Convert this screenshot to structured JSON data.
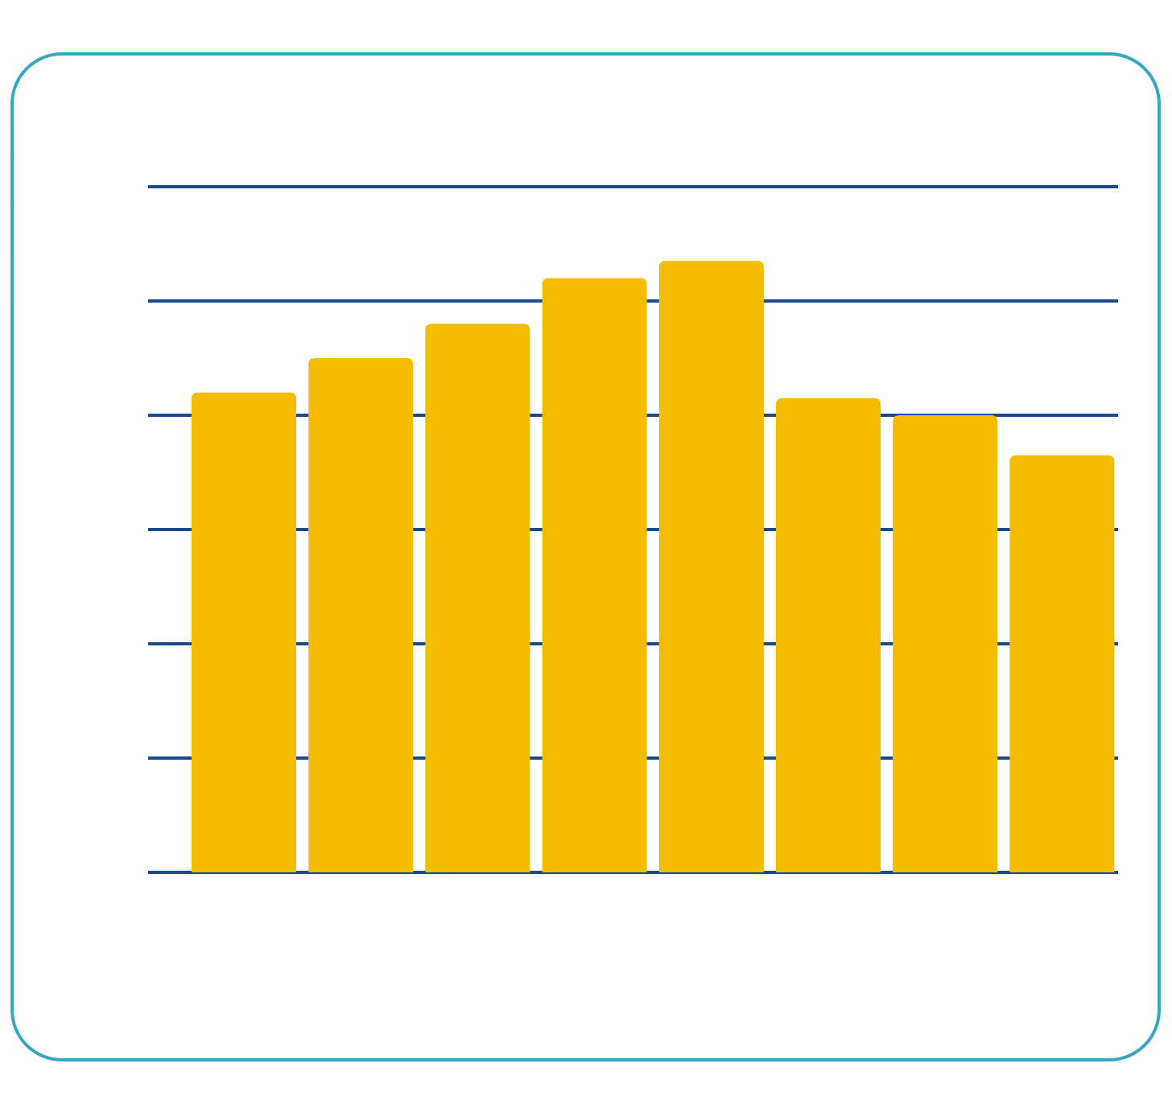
{
  "chart_data": {
    "type": "bar",
    "categories": [
      null,
      null,
      null,
      null,
      null,
      null,
      null,
      null
    ],
    "values": [
      4.2,
      4.5,
      4.8,
      5.2,
      5.35,
      4.15,
      4.0,
      3.65
    ],
    "color": "#f5bd02",
    "ylim": [
      0,
      6
    ],
    "yticks": [
      0,
      1,
      2,
      3,
      4,
      5,
      6
    ],
    "grid": true,
    "grid_color": "#1b4a8e"
  }
}
